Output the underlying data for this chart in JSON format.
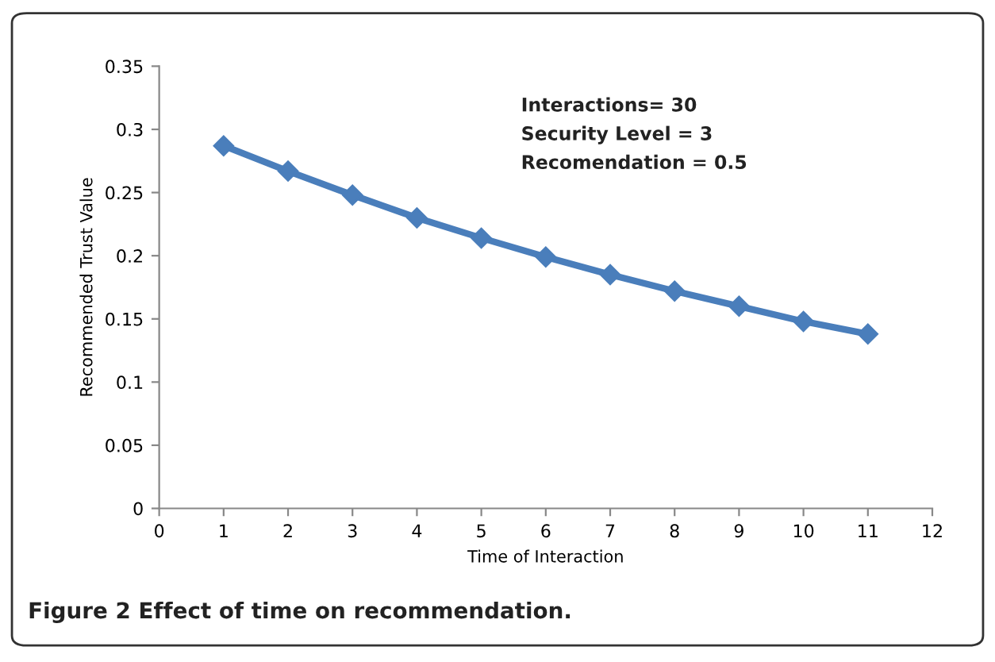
{
  "chart_data": {
    "type": "line",
    "xlabel": "Time of Interaction",
    "ylabel": "Recommended Trust Value",
    "x": [
      1,
      2,
      3,
      4,
      5,
      6,
      7,
      8,
      9,
      10,
      11
    ],
    "series": [
      {
        "color": "#4a7ebb",
        "values": [
          0.287,
          0.267,
          0.248,
          0.23,
          0.214,
          0.199,
          0.185,
          0.172,
          0.16,
          0.148,
          0.138
        ]
      }
    ],
    "xlim": [
      0,
      12
    ],
    "xticks": [
      0,
      1,
      2,
      3,
      4,
      5,
      6,
      7,
      8,
      9,
      10,
      11,
      12
    ],
    "ylim": [
      0,
      0.35
    ],
    "yticks": [
      0,
      0.05,
      0.1,
      0.15,
      0.2,
      0.25,
      0.3,
      0.35
    ],
    "marker": "diamond",
    "line_style": "solid",
    "grid": false,
    "annotations": [
      "Interactions= 30",
      "Security Level = 3",
      "Recomendation = 0.5",
      "Figure 2 Effect of time on recommendation."
    ]
  }
}
